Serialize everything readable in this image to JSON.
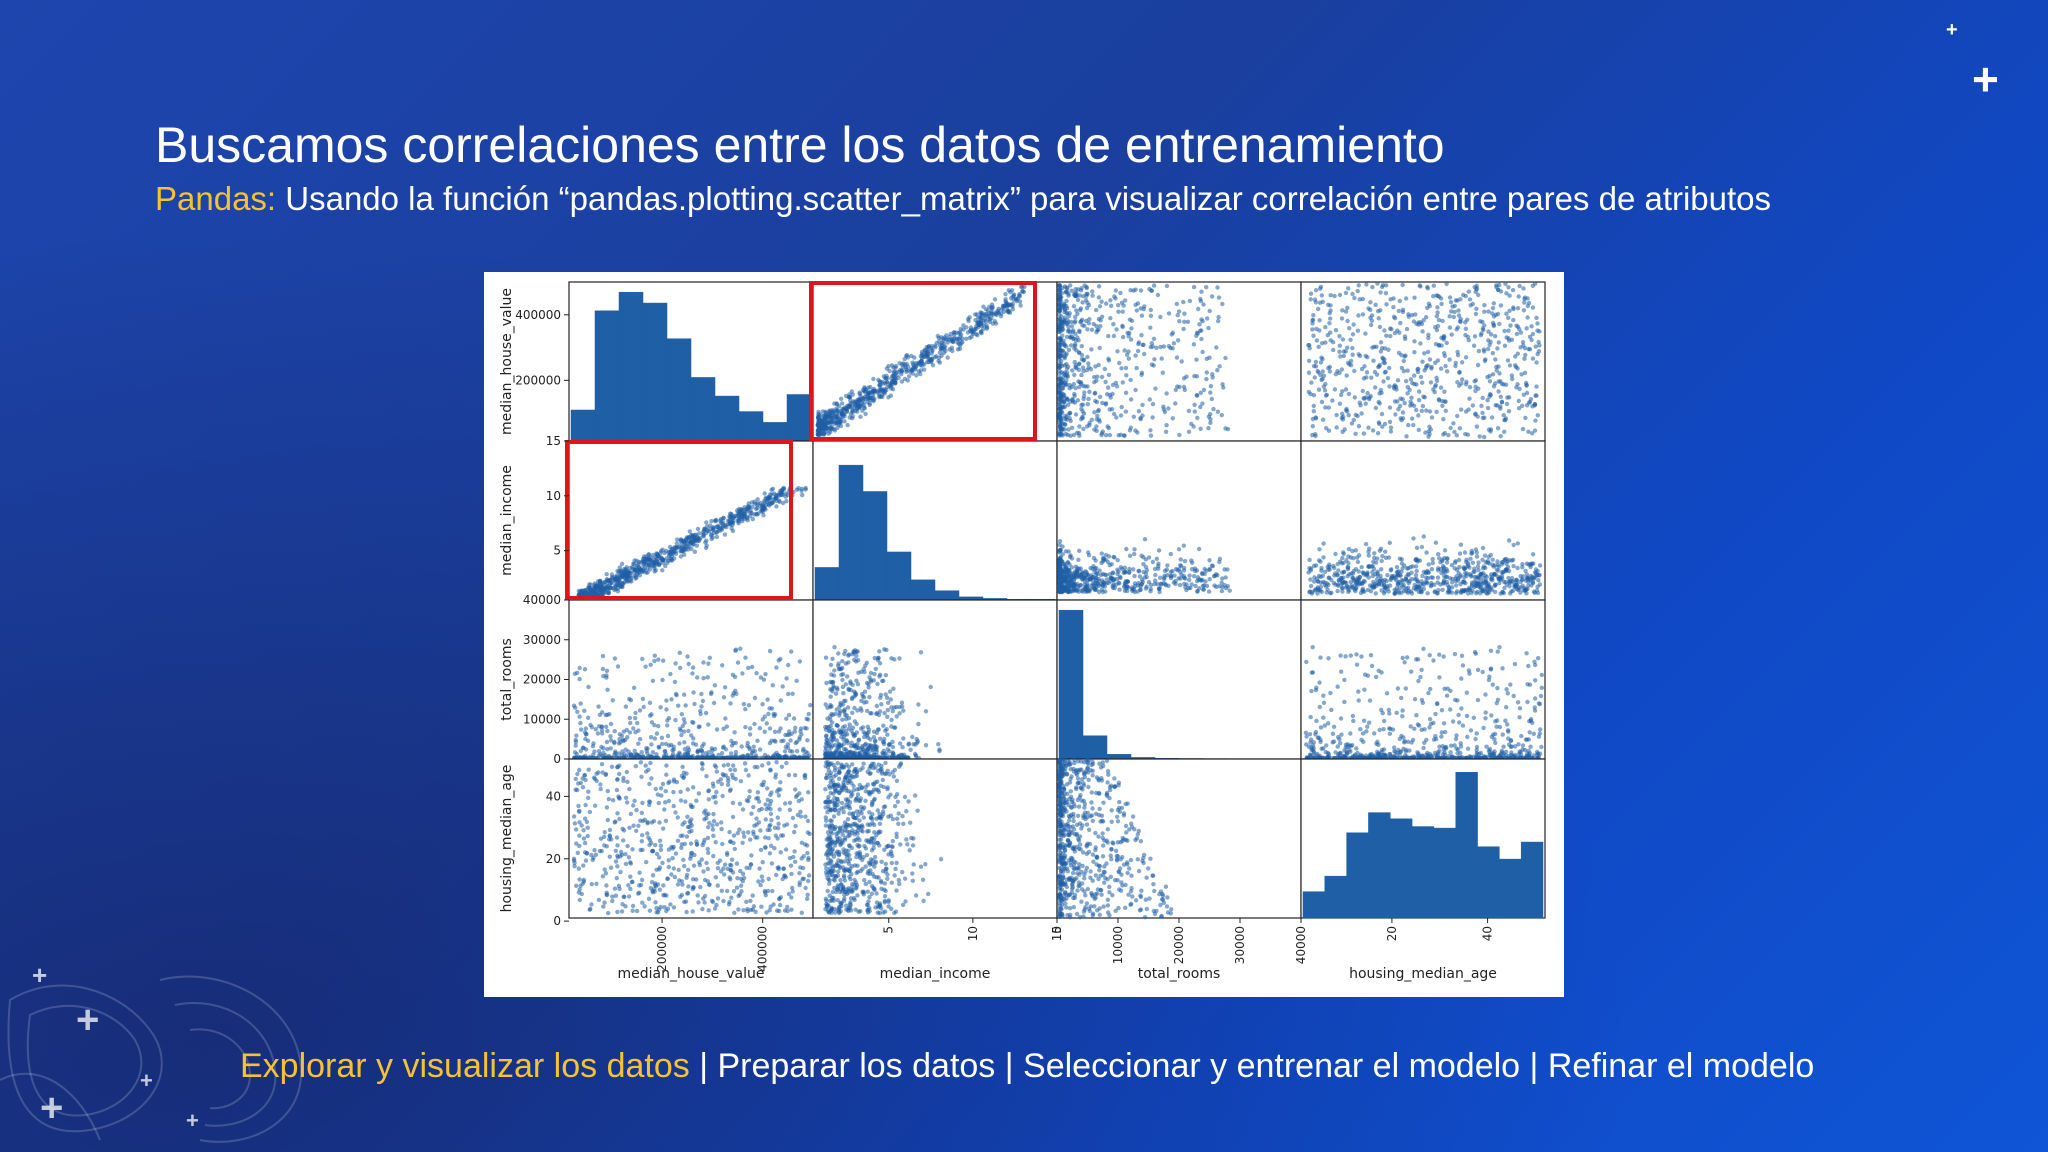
{
  "slide": {
    "title": "Buscamos correlaciones entre los datos de entrenamiento",
    "subtitle_prefix": "Pandas:",
    "subtitle_text": " Usando la función “pandas.plotting.scatter_matrix” para visualizar correlación entre pares de atributos"
  },
  "footer": {
    "steps": [
      "Explorar y visualizar los datos",
      "Preparar los datos",
      "Seleccionar y entrenar el modelo",
      "Refinar el modelo"
    ],
    "separator": " | ",
    "active_index": 0
  },
  "colors": {
    "accent": "#f6c232",
    "marker": "#1f5fa6",
    "highlight": "#e0141b",
    "background": "#1a44b0"
  },
  "decorations": {
    "icons": [
      "plus-icon",
      "plus-icon",
      "plus-icon",
      "plus-icon",
      "plus-icon",
      "plus-icon",
      "plus-icon"
    ]
  },
  "chart_data": {
    "type": "scatter",
    "variables": [
      "median_house_value",
      "median_income",
      "total_rooms",
      "housing_median_age"
    ],
    "ranges": {
      "median_house_value": [
        15000,
        500001
      ],
      "median_income": [
        0.5,
        15.0
      ],
      "total_rooms": [
        0,
        40000
      ],
      "housing_median_age": [
        1,
        52
      ]
    },
    "ticks": {
      "median_house_value": [
        "200000",
        "400000"
      ],
      "median_income": [
        "5",
        "10",
        "15"
      ],
      "total_rooms": [
        "10000",
        "20000",
        "30000",
        "40000"
      ],
      "housing_median_age": [
        "20",
        "40"
      ]
    },
    "left_axis_ticks": [
      [
        "200000",
        "400000"
      ],
      [
        "5",
        "10",
        "15"
      ],
      [
        "0",
        "10000",
        "20000",
        "30000",
        "40000"
      ],
      [
        "0",
        "20",
        "40"
      ]
    ],
    "bottom_axis_ticks": [
      [
        "200000",
        "400000"
      ],
      [
        "5",
        "10",
        "15"
      ],
      [
        "0",
        "10000",
        "20000",
        "30000",
        "40000"
      ],
      [
        "20",
        "40"
      ]
    ],
    "histograms": {
      "median_house_value": [
        0.2,
        0.84,
        0.96,
        0.89,
        0.66,
        0.41,
        0.29,
        0.19,
        0.12,
        0.3
      ],
      "median_income": [
        0.21,
        0.87,
        0.7,
        0.31,
        0.13,
        0.06,
        0.02,
        0.01,
        0.005,
        0.005
      ],
      "total_rooms": [
        0.96,
        0.15,
        0.03,
        0.01,
        0.005,
        0.003,
        0.002,
        0.001,
        0.001,
        0.001
      ],
      "housing_median_age": [
        0.17,
        0.27,
        0.55,
        0.68,
        0.64,
        0.59,
        0.58,
        0.94,
        0.46,
        0.38,
        0.49
      ]
    },
    "highlighted_cells": [
      [
        0,
        1
      ],
      [
        1,
        0
      ]
    ],
    "grid": false
  }
}
